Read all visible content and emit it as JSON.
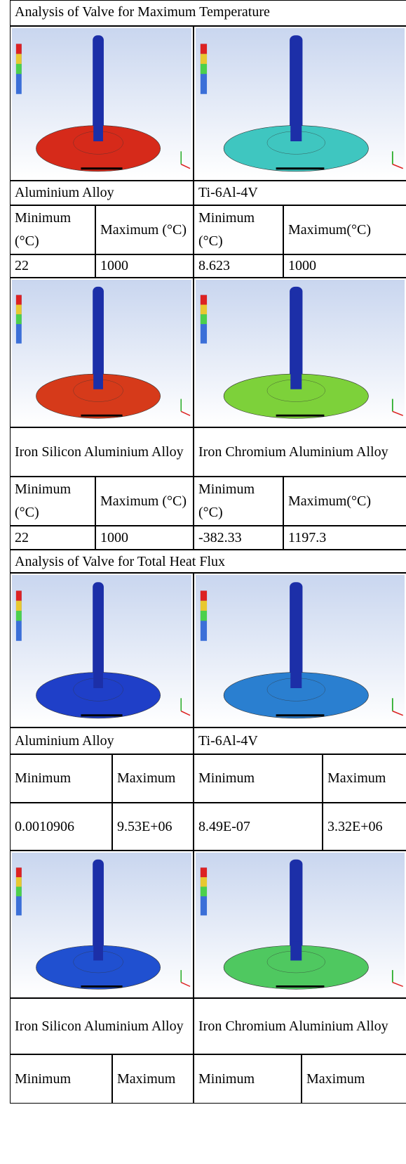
{
  "sections": [
    {
      "title": "Analysis of Valve for Maximum Temperature",
      "blocks": [
        {
          "materials": [
            "Aluminium Alloy",
            "Ti-6Al-4V"
          ],
          "headers": [
            [
              "Minimum (°C)",
              "Maximum (°C)"
            ],
            [
              "Minimum (°C)",
              "Maximum(°C)"
            ]
          ],
          "values": [
            [
              "22",
              "1000"
            ],
            [
              "8.623",
              "1000"
            ]
          ]
        },
        {
          "materials": [
            "Iron Silicon Aluminium Alloy",
            "Iron Chromium Aluminium Alloy"
          ],
          "headers": [
            [
              "Minimum (°C)",
              "Maximum (°C)"
            ],
            [
              "Minimum (°C)",
              "Maximum(°C)"
            ]
          ],
          "values": [
            [
              "22",
              "1000"
            ],
            [
              "-382.33",
              "1197.3"
            ]
          ]
        }
      ]
    },
    {
      "title": "Analysis of Valve for Total Heat Flux",
      "blocks": [
        {
          "materials": [
            "Aluminium Alloy",
            "Ti-6Al-4V"
          ],
          "headers": [
            [
              "Minimum",
              "Maximum"
            ],
            [
              "Minimum",
              "Maximum"
            ]
          ],
          "values": [
            [
              "0.0010906",
              "9.53E+06"
            ],
            [
              "8.49E-07",
              "3.32E+06"
            ]
          ]
        },
        {
          "materials": [
            "Iron Silicon Aluminium Alloy",
            "Iron Chromium Aluminium Alloy"
          ],
          "headers": [
            [
              "Minimum",
              "Maximum"
            ],
            [
              "Minimum",
              "Maximum"
            ]
          ]
        }
      ]
    }
  ]
}
